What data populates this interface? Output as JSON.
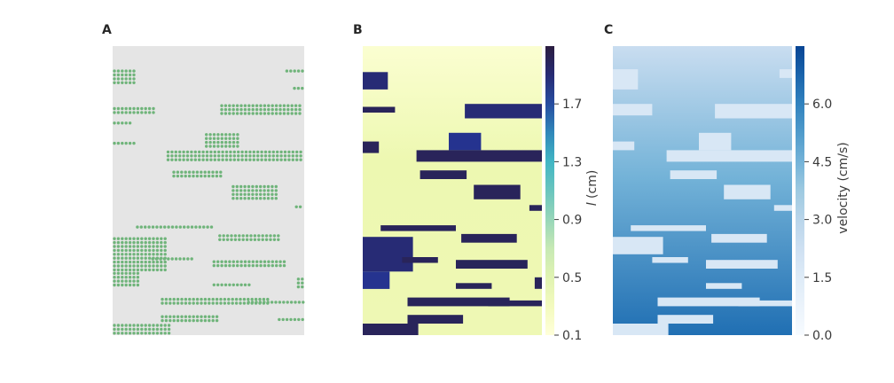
{
  "panels": {
    "a": {
      "label": "A"
    },
    "b": {
      "label": "B"
    },
    "c": {
      "label": "C"
    }
  },
  "chart_data": [
    {
      "type": "scatter",
      "panel": "A",
      "title": "",
      "xlabel": "",
      "ylabel": "",
      "background": "#e5e5e5",
      "marker_color": "#6fb47a",
      "grid": false,
      "clusters": [
        {
          "x0": 0.0,
          "x1": 0.13,
          "y0": 0.08,
          "y1": 0.14
        },
        {
          "x0": 0.0,
          "x1": 0.22,
          "y0": 0.21,
          "y1": 0.24
        },
        {
          "x0": 0.0,
          "x1": 0.1,
          "y0": 0.26,
          "y1": 0.28
        },
        {
          "x0": 0.0,
          "x1": 0.12,
          "y0": 0.33,
          "y1": 0.35
        },
        {
          "x0": 0.56,
          "x1": 1.0,
          "y0": 0.2,
          "y1": 0.24
        },
        {
          "x0": 0.48,
          "x1": 0.66,
          "y0": 0.3,
          "y1": 0.36
        },
        {
          "x0": 0.28,
          "x1": 1.0,
          "y0": 0.36,
          "y1": 0.4
        },
        {
          "x0": 0.31,
          "x1": 0.58,
          "y0": 0.43,
          "y1": 0.46
        },
        {
          "x0": 0.62,
          "x1": 0.86,
          "y0": 0.48,
          "y1": 0.53
        },
        {
          "x0": 0.12,
          "x1": 0.54,
          "y0": 0.62,
          "y1": 0.64
        },
        {
          "x0": 0.55,
          "x1": 0.87,
          "y0": 0.65,
          "y1": 0.68
        },
        {
          "x0": 0.0,
          "x1": 0.28,
          "y0": 0.66,
          "y1": 0.78
        },
        {
          "x0": 0.0,
          "x1": 0.15,
          "y0": 0.78,
          "y1": 0.84
        },
        {
          "x0": 0.2,
          "x1": 0.42,
          "y0": 0.73,
          "y1": 0.75
        },
        {
          "x0": 0.52,
          "x1": 0.92,
          "y0": 0.74,
          "y1": 0.77
        },
        {
          "x0": 0.52,
          "x1": 0.72,
          "y0": 0.82,
          "y1": 0.84
        },
        {
          "x0": 0.25,
          "x1": 0.82,
          "y0": 0.87,
          "y1": 0.9
        },
        {
          "x0": 0.7,
          "x1": 1.0,
          "y0": 0.88,
          "y1": 0.9
        },
        {
          "x0": 0.25,
          "x1": 0.56,
          "y0": 0.93,
          "y1": 0.96
        },
        {
          "x0": 0.0,
          "x1": 0.31,
          "y0": 0.96,
          "y1": 1.0
        },
        {
          "x0": 0.9,
          "x1": 1.0,
          "y0": 0.08,
          "y1": 0.1
        },
        {
          "x0": 0.94,
          "x1": 1.0,
          "y0": 0.14,
          "y1": 0.16
        },
        {
          "x0": 0.95,
          "x1": 1.0,
          "y0": 0.55,
          "y1": 0.57
        },
        {
          "x0": 0.96,
          "x1": 1.0,
          "y0": 0.8,
          "y1": 0.84
        },
        {
          "x0": 0.86,
          "x1": 1.0,
          "y0": 0.94,
          "y1": 0.96
        }
      ]
    },
    {
      "type": "heatmap",
      "panel": "B",
      "title": "",
      "colormap": "YlGnBu",
      "background_value": 0.2,
      "colorbar": {
        "label": "l (cm)",
        "label_italic_part": "l",
        "label_rest": " (cm)",
        "range": [
          0.1,
          2.1
        ],
        "ticks": [
          0.1,
          0.5,
          0.9,
          1.3,
          1.7
        ],
        "tick_labels": [
          "0.1",
          "0.5",
          "0.9",
          "1.3",
          "1.7"
        ]
      },
      "patches": [
        {
          "x0": 0.0,
          "x1": 0.14,
          "y0": 0.09,
          "y1": 0.15,
          "v": 1.9
        },
        {
          "x0": 0.57,
          "x1": 1.0,
          "y0": 0.2,
          "y1": 0.25,
          "v": 1.9
        },
        {
          "x0": 0.0,
          "x1": 0.18,
          "y0": 0.21,
          "y1": 0.23,
          "v": 2.0
        },
        {
          "x0": 0.0,
          "x1": 0.09,
          "y0": 0.33,
          "y1": 0.37,
          "v": 2.0
        },
        {
          "x0": 0.48,
          "x1": 0.66,
          "y0": 0.3,
          "y1": 0.36,
          "v": 1.8
        },
        {
          "x0": 0.3,
          "x1": 1.0,
          "y0": 0.36,
          "y1": 0.4,
          "v": 2.0
        },
        {
          "x0": 0.32,
          "x1": 0.58,
          "y0": 0.43,
          "y1": 0.46,
          "v": 2.0
        },
        {
          "x0": 0.62,
          "x1": 0.88,
          "y0": 0.48,
          "y1": 0.53,
          "v": 2.0
        },
        {
          "x0": 0.1,
          "x1": 0.52,
          "y0": 0.62,
          "y1": 0.64,
          "v": 2.0
        },
        {
          "x0": 0.55,
          "x1": 0.86,
          "y0": 0.65,
          "y1": 0.68,
          "v": 2.0
        },
        {
          "x0": 0.0,
          "x1": 0.28,
          "y0": 0.66,
          "y1": 0.78,
          "v": 1.9
        },
        {
          "x0": 0.0,
          "x1": 0.15,
          "y0": 0.78,
          "y1": 0.84,
          "v": 1.8
        },
        {
          "x0": 0.22,
          "x1": 0.42,
          "y0": 0.73,
          "y1": 0.75,
          "v": 2.0
        },
        {
          "x0": 0.52,
          "x1": 0.92,
          "y0": 0.74,
          "y1": 0.77,
          "v": 2.0
        },
        {
          "x0": 0.52,
          "x1": 0.72,
          "y0": 0.82,
          "y1": 0.84,
          "v": 2.0
        },
        {
          "x0": 0.25,
          "x1": 0.82,
          "y0": 0.87,
          "y1": 0.9,
          "v": 2.0
        },
        {
          "x0": 0.7,
          "x1": 1.0,
          "y0": 0.88,
          "y1": 0.9,
          "v": 2.0
        },
        {
          "x0": 0.25,
          "x1": 0.56,
          "y0": 0.93,
          "y1": 0.96,
          "v": 2.0
        },
        {
          "x0": 0.0,
          "x1": 0.31,
          "y0": 0.96,
          "y1": 1.0,
          "v": 2.0
        },
        {
          "x0": 0.93,
          "x1": 1.0,
          "y0": 0.55,
          "y1": 0.57,
          "v": 2.0
        },
        {
          "x0": 0.96,
          "x1": 1.0,
          "y0": 0.8,
          "y1": 0.84,
          "v": 2.0
        }
      ]
    },
    {
      "type": "heatmap",
      "panel": "C",
      "title": "",
      "colormap": "Blues",
      "background_range": [
        2.5,
        6.5
      ],
      "patch_value": 1.8,
      "colorbar": {
        "label": "velocity (cm/s)",
        "range": [
          0.0,
          7.5
        ],
        "ticks": [
          0.0,
          1.5,
          3.0,
          4.5,
          6.0
        ],
        "tick_labels": [
          "0.0",
          "1.5",
          "3.0",
          "4.5",
          "6.0"
        ]
      },
      "patches": [
        {
          "x0": 0.0,
          "x1": 0.14,
          "y0": 0.08,
          "y1": 0.15
        },
        {
          "x0": 0.0,
          "x1": 0.22,
          "y0": 0.2,
          "y1": 0.24
        },
        {
          "x0": 0.57,
          "x1": 1.0,
          "y0": 0.2,
          "y1": 0.25
        },
        {
          "x0": 0.0,
          "x1": 0.12,
          "y0": 0.33,
          "y1": 0.36
        },
        {
          "x0": 0.48,
          "x1": 0.66,
          "y0": 0.3,
          "y1": 0.36
        },
        {
          "x0": 0.3,
          "x1": 1.0,
          "y0": 0.36,
          "y1": 0.4
        },
        {
          "x0": 0.32,
          "x1": 0.58,
          "y0": 0.43,
          "y1": 0.46
        },
        {
          "x0": 0.62,
          "x1": 0.88,
          "y0": 0.48,
          "y1": 0.53
        },
        {
          "x0": 0.1,
          "x1": 0.52,
          "y0": 0.62,
          "y1": 0.64
        },
        {
          "x0": 0.55,
          "x1": 0.86,
          "y0": 0.65,
          "y1": 0.68
        },
        {
          "x0": 0.0,
          "x1": 0.28,
          "y0": 0.66,
          "y1": 0.72
        },
        {
          "x0": 0.22,
          "x1": 0.42,
          "y0": 0.73,
          "y1": 0.75
        },
        {
          "x0": 0.52,
          "x1": 0.92,
          "y0": 0.74,
          "y1": 0.77
        },
        {
          "x0": 0.52,
          "x1": 0.72,
          "y0": 0.82,
          "y1": 0.84
        },
        {
          "x0": 0.25,
          "x1": 0.82,
          "y0": 0.87,
          "y1": 0.9
        },
        {
          "x0": 0.7,
          "x1": 1.0,
          "y0": 0.88,
          "y1": 0.9
        },
        {
          "x0": 0.25,
          "x1": 0.56,
          "y0": 0.93,
          "y1": 0.96
        },
        {
          "x0": 0.0,
          "x1": 0.31,
          "y0": 0.96,
          "y1": 1.0
        },
        {
          "x0": 0.93,
          "x1": 1.0,
          "y0": 0.08,
          "y1": 0.11
        },
        {
          "x0": 0.9,
          "x1": 1.0,
          "y0": 0.55,
          "y1": 0.57
        }
      ]
    }
  ]
}
